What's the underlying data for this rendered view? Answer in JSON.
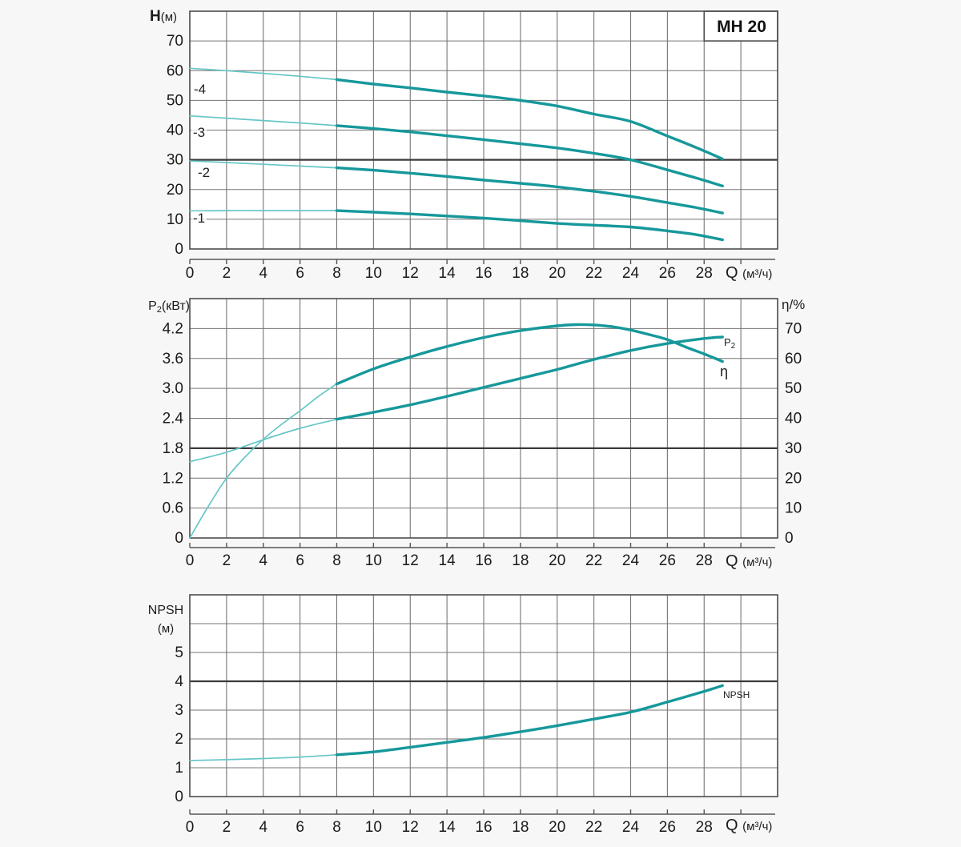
{
  "labels": {
    "badge": "MH 20",
    "head_y_title": "H",
    "head_y_unit": "(м)",
    "q_title": "Q",
    "q_unit": "(м³/ч)",
    "p_letter": "P",
    "p_sub": "2",
    "p_unit": "(кВт)",
    "eta_axis": "η/%",
    "eta_curve": "η",
    "npsh_line1": "NPSH",
    "npsh_line2": "(м)"
  },
  "chart_data": [
    {
      "id": "head",
      "type": "line",
      "title": "MH 20",
      "xlabel": "Q (м³/ч)",
      "ylabel": "H (м)",
      "xlim": [
        0,
        32
      ],
      "ylim": [
        0,
        80
      ],
      "x_grid_step": 2,
      "y_grid_step": 10,
      "ref_gridline_y": 30,
      "x_tick_labels": [
        "0",
        "2",
        "4",
        "6",
        "8",
        "10",
        "12",
        "14",
        "16",
        "18",
        "20",
        "22",
        "24",
        "26",
        "28"
      ],
      "y_tick_labels": [
        "0",
        "10",
        "20",
        "30",
        "40",
        "50",
        "60",
        "70"
      ],
      "series": [
        {
          "name": "-4",
          "axis": "left",
          "thick_from_x": 8,
          "points": [
            [
              0,
              60.8
            ],
            [
              2,
              60.0
            ],
            [
              4,
              59.1
            ],
            [
              6,
              58.1
            ],
            [
              8,
              57.0
            ],
            [
              10,
              55.5
            ],
            [
              12,
              54.2
            ],
            [
              14,
              52.8
            ],
            [
              16,
              51.5
            ],
            [
              18,
              50.0
            ],
            [
              20,
              48.1
            ],
            [
              22,
              45.4
            ],
            [
              24,
              42.9
            ],
            [
              26,
              38.0
            ],
            [
              27.5,
              34.3
            ],
            [
              29,
              30.3
            ]
          ]
        },
        {
          "name": "-3",
          "axis": "left",
          "thick_from_x": 8,
          "points": [
            [
              0,
              44.8
            ],
            [
              2,
              44.0
            ],
            [
              4,
              43.2
            ],
            [
              6,
              42.4
            ],
            [
              8,
              41.5
            ],
            [
              10,
              40.5
            ],
            [
              12,
              39.4
            ],
            [
              14,
              38.1
            ],
            [
              16,
              36.8
            ],
            [
              18,
              35.4
            ],
            [
              20,
              34.0
            ],
            [
              22,
              32.2
            ],
            [
              24,
              30.0
            ],
            [
              26,
              26.6
            ],
            [
              27.5,
              24.0
            ],
            [
              29,
              21.2
            ]
          ]
        },
        {
          "name": "-2",
          "axis": "left",
          "thick_from_x": 8,
          "points": [
            [
              0,
              29.6
            ],
            [
              2,
              29.1
            ],
            [
              4,
              28.5
            ],
            [
              6,
              27.9
            ],
            [
              8,
              27.3
            ],
            [
              10,
              26.5
            ],
            [
              12,
              25.5
            ],
            [
              14,
              24.4
            ],
            [
              16,
              23.2
            ],
            [
              18,
              22.1
            ],
            [
              20,
              20.9
            ],
            [
              22,
              19.4
            ],
            [
              24,
              17.7
            ],
            [
              26,
              15.6
            ],
            [
              27.5,
              14.0
            ],
            [
              29,
              12.1
            ]
          ]
        },
        {
          "name": "-1",
          "axis": "left",
          "thick_from_x": 8,
          "points": [
            [
              0,
              12.8
            ],
            [
              2,
              12.9
            ],
            [
              4,
              12.9
            ],
            [
              6,
              12.9
            ],
            [
              8,
              12.9
            ],
            [
              10,
              12.4
            ],
            [
              12,
              11.8
            ],
            [
              14,
              11.1
            ],
            [
              16,
              10.4
            ],
            [
              18,
              9.5
            ],
            [
              20,
              8.6
            ],
            [
              22,
              8.0
            ],
            [
              24,
              7.4
            ],
            [
              26,
              6.1
            ],
            [
              27.5,
              4.9
            ],
            [
              29,
              3.1
            ]
          ]
        }
      ]
    },
    {
      "id": "power",
      "type": "line",
      "xlabel": "Q (м³/ч)",
      "ylabel": "P₂(кВт)",
      "y2label": "η/%",
      "xlim": [
        0,
        32
      ],
      "ylim": [
        0,
        4.8
      ],
      "y2lim": [
        0,
        80
      ],
      "x_grid_step": 2,
      "y_grid_step": 0.6,
      "ref_gridline_y": 1.8,
      "x_tick_labels": [
        "0",
        "2",
        "4",
        "6",
        "8",
        "10",
        "12",
        "14",
        "16",
        "18",
        "20",
        "22",
        "24",
        "26",
        "28"
      ],
      "y_tick_labels": [
        "0",
        "0.6",
        "1.2",
        "1.8",
        "2.4",
        "3.0",
        "3.6",
        "4.2"
      ],
      "y2_tick_labels": [
        "0",
        "10",
        "20",
        "30",
        "40",
        "50",
        "60",
        "70"
      ],
      "series": [
        {
          "name": "P₂",
          "axis": "left",
          "thick_from_x": 8,
          "points": [
            [
              0,
              1.53
            ],
            [
              2,
              1.72
            ],
            [
              4,
              1.97
            ],
            [
              6,
              2.2
            ],
            [
              8,
              2.38
            ],
            [
              10,
              2.52
            ],
            [
              12,
              2.67
            ],
            [
              14,
              2.84
            ],
            [
              16,
              3.02
            ],
            [
              18,
              3.2
            ],
            [
              20,
              3.38
            ],
            [
              22,
              3.58
            ],
            [
              24,
              3.76
            ],
            [
              26,
              3.9
            ],
            [
              28,
              4.0
            ],
            [
              29,
              4.03
            ]
          ]
        },
        {
          "name": "η",
          "axis": "right",
          "thick_from_x": 8,
          "points": [
            [
              0,
              0
            ],
            [
              1,
              10.5
            ],
            [
              2,
              20
            ],
            [
              3,
              27
            ],
            [
              4,
              33
            ],
            [
              5,
              38
            ],
            [
              6,
              42.5
            ],
            [
              7,
              47.3
            ],
            [
              8,
              51.5
            ],
            [
              10,
              56.5
            ],
            [
              12,
              60.5
            ],
            [
              14,
              64
            ],
            [
              16,
              67
            ],
            [
              18,
              69.3
            ],
            [
              20,
              70.9
            ],
            [
              21,
              71.3
            ],
            [
              22,
              71.2
            ],
            [
              23,
              70.6
            ],
            [
              24,
              69.5
            ],
            [
              25,
              68
            ],
            [
              26,
              66.3
            ],
            [
              27,
              63.8
            ],
            [
              28,
              61.5
            ],
            [
              29,
              59
            ]
          ]
        }
      ]
    },
    {
      "id": "npsh",
      "type": "line",
      "xlabel": "Q (м³/ч)",
      "ylabel": "NPSH (м)",
      "xlim": [
        0,
        32
      ],
      "ylim": [
        0,
        7
      ],
      "x_grid_step": 2,
      "y_grid_step": 1,
      "ref_gridline_y": 4,
      "x_tick_labels": [
        "0",
        "2",
        "4",
        "6",
        "8",
        "10",
        "12",
        "14",
        "16",
        "18",
        "20",
        "22",
        "24",
        "26",
        "28"
      ],
      "y_tick_labels": [
        "0",
        "1",
        "2",
        "3",
        "4",
        "5"
      ],
      "series": [
        {
          "name": "NPSH",
          "axis": "left",
          "thick_from_x": 8,
          "points": [
            [
              0,
              1.25
            ],
            [
              2,
              1.28
            ],
            [
              4,
              1.32
            ],
            [
              6,
              1.37
            ],
            [
              8,
              1.45
            ],
            [
              10,
              1.55
            ],
            [
              12,
              1.71
            ],
            [
              14,
              1.88
            ],
            [
              16,
              2.05
            ],
            [
              18,
              2.25
            ],
            [
              20,
              2.46
            ],
            [
              22,
              2.69
            ],
            [
              24,
              2.93
            ],
            [
              26,
              3.28
            ],
            [
              28,
              3.65
            ],
            [
              29,
              3.85
            ]
          ]
        }
      ]
    }
  ],
  "style": {
    "curve_color_thick": "#16989b",
    "curve_color_thin": "#66c6c7",
    "grid_color": "#757575",
    "ref_line_color": "#3b3b3b",
    "border_color": "#4d4d4d",
    "axis_color": "#555555",
    "text_color": "#1a1a1a"
  }
}
